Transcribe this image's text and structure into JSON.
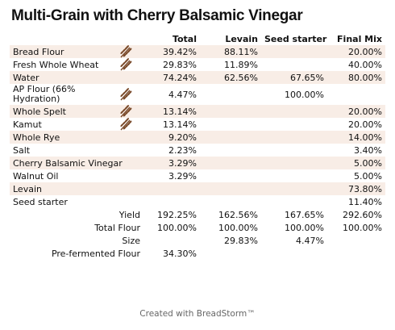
{
  "title": "Multi-Grain with Cherry Balsamic Vinegar",
  "columns": [
    "Total",
    "Levain",
    "Seed starter",
    "Final Mix"
  ],
  "ingredients": [
    {
      "name": "Bread Flour",
      "icon": "wheat-icon",
      "total": "39.42%",
      "levain": "88.11%",
      "seed": "",
      "final": "20.00%"
    },
    {
      "name": "Fresh Whole Wheat",
      "icon": "wheat-icon",
      "total": "29.83%",
      "levain": "11.89%",
      "seed": "",
      "final": "40.00%"
    },
    {
      "name": "Water",
      "icon": "",
      "total": "74.24%",
      "levain": "62.56%",
      "seed": "67.65%",
      "final": "80.00%"
    },
    {
      "name": "AP Flour (66% Hydration)",
      "icon": "wheat-icon",
      "total": "4.47%",
      "levain": "",
      "seed": "100.00%",
      "final": ""
    },
    {
      "name": "Whole Spelt",
      "icon": "wheat-icon",
      "total": "13.14%",
      "levain": "",
      "seed": "",
      "final": "20.00%"
    },
    {
      "name": "Kamut",
      "icon": "wheat-icon",
      "total": "13.14%",
      "levain": "",
      "seed": "",
      "final": "20.00%"
    },
    {
      "name": "Whole Rye",
      "icon": "",
      "total": "9.20%",
      "levain": "",
      "seed": "",
      "final": "14.00%"
    },
    {
      "name": "Salt",
      "icon": "",
      "total": "2.23%",
      "levain": "",
      "seed": "",
      "final": "3.40%"
    },
    {
      "name": "Cherry Balsamic Vinegar",
      "icon": "",
      "total": "3.29%",
      "levain": "",
      "seed": "",
      "final": "5.00%"
    },
    {
      "name": "Walnut Oil",
      "icon": "",
      "total": "3.29%",
      "levain": "",
      "seed": "",
      "final": "5.00%"
    },
    {
      "name": "Levain",
      "icon": "",
      "total": "",
      "levain": "",
      "seed": "",
      "final": "73.80%"
    },
    {
      "name": "Seed starter",
      "icon": "",
      "total": "",
      "levain": "",
      "seed": "",
      "final": "11.40%"
    }
  ],
  "summary": [
    {
      "label": "Yield",
      "total": "192.25%",
      "levain": "162.56%",
      "seed": "167.65%",
      "final": "292.60%"
    },
    {
      "label": "Total Flour",
      "total": "100.00%",
      "levain": "100.00%",
      "seed": "100.00%",
      "final": "100.00%"
    },
    {
      "label": "Size",
      "total": "",
      "levain": "29.83%",
      "seed": "4.47%",
      "final": ""
    },
    {
      "label": "Pre-fermented Flour",
      "total": "34.30%",
      "levain": "",
      "seed": "",
      "final": ""
    }
  ],
  "footer": "Created with BreadStorm™",
  "colors": {
    "row_shade": "#f8ede6",
    "wheat_icon": "#7a4a2a",
    "footer_text": "#666666"
  }
}
